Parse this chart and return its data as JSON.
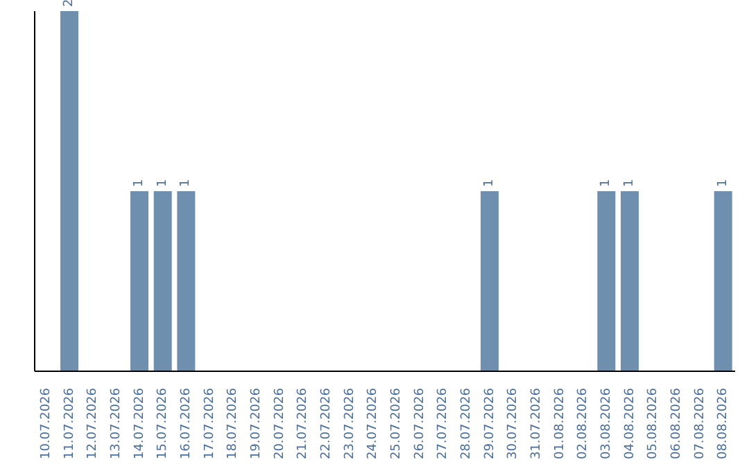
{
  "chart_data": {
    "type": "bar",
    "categories": [
      "10.07.2026",
      "11.07.2026",
      "12.07.2026",
      "13.07.2026",
      "14.07.2026",
      "15.07.2026",
      "16.07.2026",
      "17.07.2026",
      "18.07.2026",
      "19.07.2026",
      "20.07.2026",
      "21.07.2026",
      "22.07.2026",
      "23.07.2026",
      "24.07.2026",
      "25.07.2026",
      "26.07.2026",
      "27.07.2026",
      "28.07.2026",
      "29.07.2026",
      "30.07.2026",
      "31.07.2026",
      "01.08.2026",
      "02.08.2026",
      "03.08.2026",
      "04.08.2026",
      "05.08.2026",
      "06.08.2026",
      "07.08.2026",
      "08.08.2026"
    ],
    "values": [
      0,
      2,
      0,
      0,
      1,
      1,
      1,
      0,
      0,
      0,
      0,
      0,
      0,
      0,
      0,
      0,
      0,
      0,
      0,
      1,
      0,
      0,
      0,
      0,
      1,
      1,
      0,
      0,
      0,
      1
    ],
    "value_labels": [
      null,
      "2",
      null,
      null,
      "1",
      "1",
      "1",
      null,
      null,
      null,
      null,
      null,
      null,
      null,
      null,
      null,
      null,
      null,
      null,
      "1",
      null,
      null,
      null,
      null,
      "1",
      "1",
      null,
      null,
      null,
      "1"
    ],
    "color": "#6e8fad",
    "tick_labels": "x"
  }
}
